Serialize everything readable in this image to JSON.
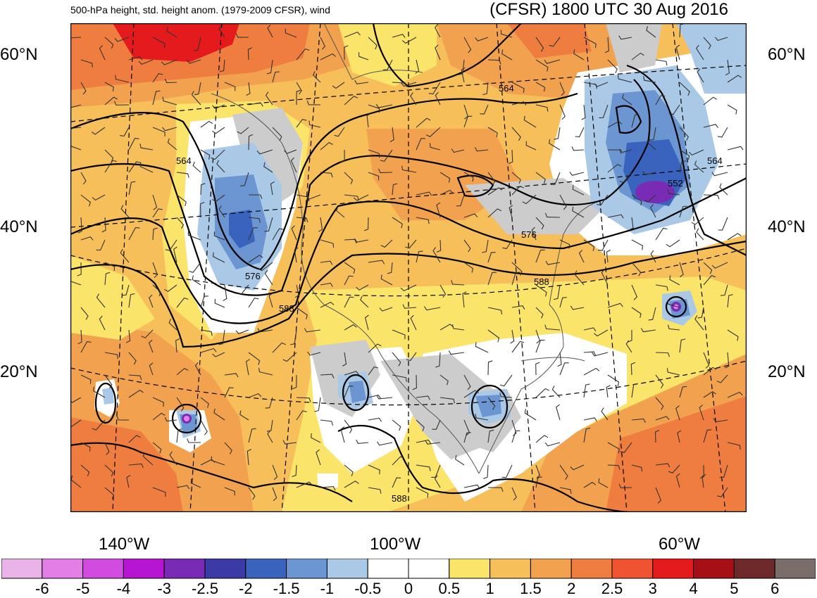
{
  "title_left": "500-hPa height, std. height anom. (1979-2009 CFSR), wind",
  "title_right": "(CFSR) 1800 UTC 30 Aug 2016",
  "lat_labels": [
    "60°N",
    "40°N",
    "20°N"
  ],
  "lon_labels": [
    "140°W",
    "100°W",
    "60°W"
  ],
  "contour_labels": [
    "564",
    "564",
    "564",
    "552",
    "576",
    "576",
    "588",
    "588",
    "588"
  ],
  "colorbar": {
    "colors": [
      "#e8b4e8",
      "#e27ee6",
      "#d24be0",
      "#b615d1",
      "#7a2bb5",
      "#3b3aa6",
      "#3a63bd",
      "#6b96d1",
      "#a9c9e6",
      "#ffffff",
      "#ffffff",
      "#fbe46a",
      "#f6bf5a",
      "#f2a24e",
      "#ee7d3f",
      "#ef5331",
      "#e41a1c",
      "#a50f15",
      "#6e2a2a",
      "#7a6d6a"
    ],
    "labels": [
      "-6",
      "-5",
      "-4",
      "-3",
      "-2.5",
      "-2",
      "-1.5",
      "-1",
      "-0.5",
      "0",
      "0.5",
      "1",
      "1.5",
      "2",
      "2.5",
      "3",
      "4",
      "5",
      "6"
    ]
  },
  "field_colors": {
    "orange_dark": "#ee7d3f",
    "orange": "#f2a24e",
    "orange_light": "#f6bf5a",
    "yellow": "#fbe46a",
    "white": "#ffffff",
    "gray": "#cccccc",
    "blue_light": "#a9c9e6",
    "blue": "#6b96d1",
    "blue_dark": "#3a63bd",
    "purple": "#7a2bb5",
    "red": "#e41a1c"
  }
}
